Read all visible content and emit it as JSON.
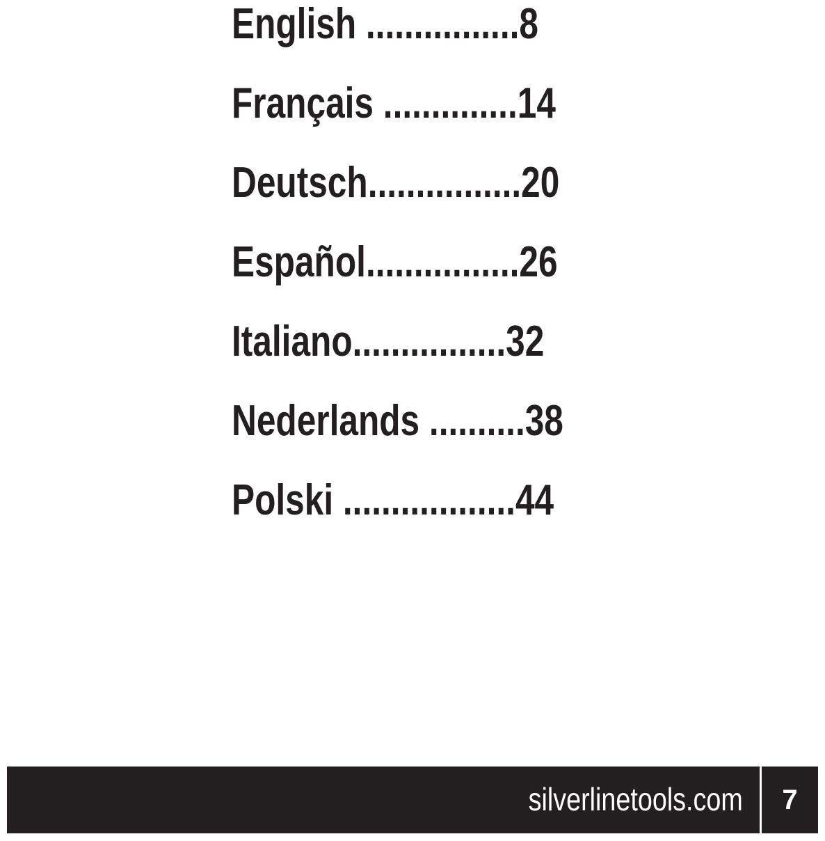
{
  "toc": [
    {
      "language": "English",
      "leader": " ................",
      "page": "8"
    },
    {
      "language": "Français",
      "leader": " ..............",
      "page": "14"
    },
    {
      "language": "Deutsch",
      "leader": "................",
      "page": "20"
    },
    {
      "language": "Español",
      "leader": "................",
      "page": "26"
    },
    {
      "language": "Italiano",
      "leader": "................",
      "page": "32"
    },
    {
      "language": "Nederlands",
      "leader": " ..........",
      "page": "38"
    },
    {
      "language": "Polski",
      "leader": " ..................",
      "page": "44"
    }
  ],
  "footer": {
    "website": "silverlinetools.com",
    "page_number": "7"
  }
}
